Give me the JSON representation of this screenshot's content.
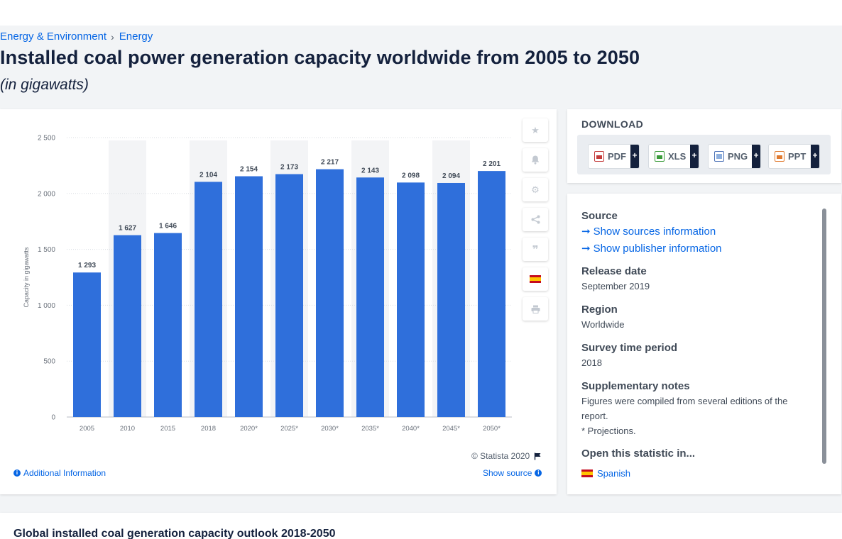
{
  "breadcrumb": [
    "Energy & Environment",
    "Energy"
  ],
  "title": "Installed coal power generation capacity worldwide from 2005 to 2050",
  "subtitle": "(in gigawatts)",
  "chart_data": {
    "type": "bar",
    "categories": [
      "2005",
      "2010",
      "2015",
      "2018",
      "2020*",
      "2025*",
      "2030*",
      "2035*",
      "2040*",
      "2045*",
      "2050*"
    ],
    "values": [
      1293,
      1627,
      1646,
      2104,
      2154,
      2173,
      2217,
      2143,
      2098,
      2094,
      2201
    ],
    "value_labels": [
      "1 293",
      "1 627",
      "1 646",
      "2 104",
      "2 154",
      "2 173",
      "2 217",
      "2 143",
      "2 098",
      "2 094",
      "2 201"
    ],
    "ylabel": "Capacity in gigawatts",
    "xlabel": "",
    "ylim": [
      0,
      2500
    ],
    "yticks": [
      0,
      500,
      1000,
      1500,
      2000,
      2500
    ],
    "ytick_labels": [
      "0",
      "500",
      "1 000",
      "1 500",
      "2 000",
      "2 500"
    ],
    "grid": true,
    "colors": {
      "bar": "#2f6fdb",
      "band": "#f3f4f6",
      "grid": "#d9dde2"
    }
  },
  "chart_footer": {
    "copyright": "© Statista 2020",
    "additional_info": "Additional Information",
    "show_source": "Show source"
  },
  "tools": [
    "star-icon",
    "bell-icon",
    "gear-icon",
    "share-icon",
    "quote-icon",
    "spanish-flag-icon",
    "print-icon"
  ],
  "download": {
    "title": "DOWNLOAD",
    "buttons": [
      {
        "label": "PDF",
        "icon": "pdf-file-icon"
      },
      {
        "label": "XLS",
        "icon": "xls-file-icon"
      },
      {
        "label": "PNG",
        "icon": "png-file-icon"
      },
      {
        "label": "PPT",
        "icon": "ppt-file-icon"
      }
    ],
    "plus": "+"
  },
  "details": {
    "source_heading": "Source",
    "show_sources": "Show sources information",
    "show_publisher": "Show publisher information",
    "release_heading": "Release date",
    "release_value": "September 2019",
    "region_heading": "Region",
    "region_value": "Worldwide",
    "survey_heading": "Survey time period",
    "survey_value": "2018",
    "supp_heading": "Supplementary notes",
    "supp_line1": "Figures were compiled from several editions of the report.",
    "supp_line2": "* Projections.",
    "open_heading": "Open this statistic in...",
    "open_lang": "Spanish"
  },
  "related": {
    "title": "Global installed coal generation capacity outlook 2018-2050"
  }
}
